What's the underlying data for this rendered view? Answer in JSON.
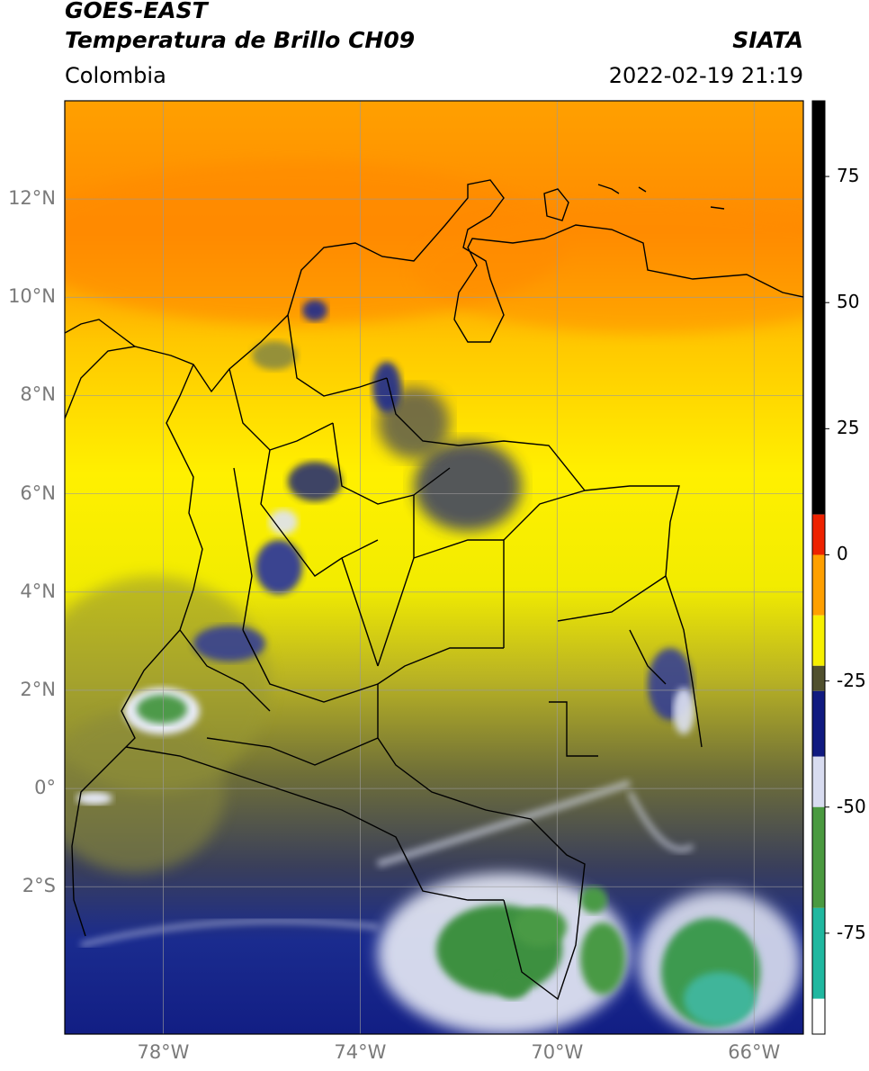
{
  "header": {
    "satellite": "GOES-EAST",
    "product": "Temperatura de Brillo CH09",
    "brand": "SIATA",
    "region": "Colombia",
    "timestamp": "2022-02-19 21:19"
  },
  "map": {
    "lon_range": [
      -80,
      -65
    ],
    "lat_range": [
      -5,
      14
    ],
    "lon_ticks": [
      {
        "value": -78,
        "label": "78°W"
      },
      {
        "value": -74,
        "label": "74°W"
      },
      {
        "value": -70,
        "label": "70°W"
      },
      {
        "value": -66,
        "label": "66°W"
      }
    ],
    "lat_ticks": [
      {
        "value": 12,
        "label": "12°N"
      },
      {
        "value": 10,
        "label": "10°N"
      },
      {
        "value": 8,
        "label": "8°N"
      },
      {
        "value": 6,
        "label": "6°N"
      },
      {
        "value": 4,
        "label": "4°N"
      },
      {
        "value": 2,
        "label": "2°N"
      },
      {
        "value": 0,
        "label": "0°"
      },
      {
        "value": -2,
        "label": "2°S"
      }
    ],
    "gridlines": true
  },
  "colorbar": {
    "unit_range": [
      -95,
      90
    ],
    "ticks": [
      {
        "value": 75,
        "label": "75"
      },
      {
        "value": 50,
        "label": "50"
      },
      {
        "value": 25,
        "label": "25"
      },
      {
        "value": 0,
        "label": "0"
      },
      {
        "value": -25,
        "label": "-25"
      },
      {
        "value": -50,
        "label": "-50"
      },
      {
        "value": -75,
        "label": "-75"
      }
    ],
    "segments": [
      {
        "from": 8,
        "to": 90,
        "color": "#000000"
      },
      {
        "from": 0,
        "to": 8,
        "color": "#ee2200"
      },
      {
        "from": -12,
        "to": 0,
        "color": "#ffa000"
      },
      {
        "from": -22,
        "to": -12,
        "color": "#f6f000"
      },
      {
        "from": -27,
        "to": -22,
        "color": "#50502e"
      },
      {
        "from": -40,
        "to": -27,
        "color": "#101a80"
      },
      {
        "from": -50,
        "to": -40,
        "color": "#d8dcf0"
      },
      {
        "from": -70,
        "to": -50,
        "color": "#4a9a40"
      },
      {
        "from": -88,
        "to": -70,
        "color": "#20b8a0"
      },
      {
        "from": -95,
        "to": -88,
        "color": "#ffffff"
      }
    ]
  }
}
